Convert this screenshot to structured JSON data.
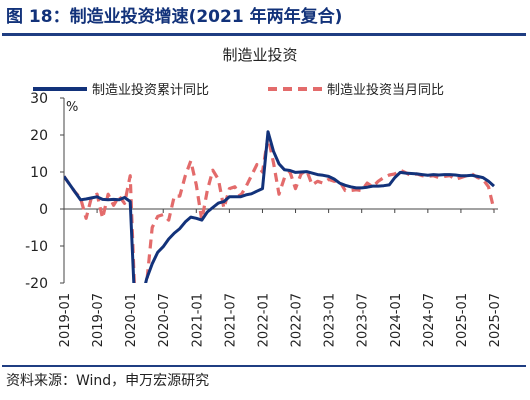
{
  "figure": {
    "title": "图 18：制造业投资增速(2021 年两年复合)",
    "source": "资料来源：Wind，申万宏源研究"
  },
  "colors": {
    "title": "#12327a",
    "rule": "#1f3d82",
    "cumulative": "#12327a",
    "monthly": "#e36b6b"
  },
  "chart_data": {
    "type": "line",
    "title": "制造业投资",
    "ylabel": "%",
    "ylim": [
      -20,
      30
    ],
    "yticks": [
      -20,
      -10,
      0,
      10,
      20,
      30
    ],
    "xlim": [
      "2019-01",
      "2025-07"
    ],
    "xticks": [
      "2019-01",
      "2019-07",
      "2020-01",
      "2020-07",
      "2021-01",
      "2021-07",
      "2022-01",
      "2022-07",
      "2023-01",
      "2023-07",
      "2024-01",
      "2024-07",
      "2025-01",
      "2025-07"
    ],
    "legend_position": "top",
    "grid": false,
    "series": [
      {
        "name": "制造业投资累计同比",
        "style": "solid",
        "points": [
          [
            "2019-01",
            8.8
          ],
          [
            "2019-03",
            4.6
          ],
          [
            "2019-04",
            2.5
          ],
          [
            "2019-05",
            2.7
          ],
          [
            "2019-06",
            3.0
          ],
          [
            "2019-07",
            3.3
          ],
          [
            "2019-08",
            2.6
          ],
          [
            "2019-09",
            2.5
          ],
          [
            "2019-10",
            2.6
          ],
          [
            "2019-11",
            2.5
          ],
          [
            "2019-12",
            3.1
          ],
          [
            "2020-01",
            2.0
          ],
          [
            "2020-02",
            -31.5
          ],
          [
            "2020-03",
            -25.2
          ],
          [
            "2020-04",
            -18.8
          ],
          [
            "2020-05",
            -14.8
          ],
          [
            "2020-06",
            -11.7
          ],
          [
            "2020-07",
            -10.2
          ],
          [
            "2020-08",
            -8.1
          ],
          [
            "2020-09",
            -6.5
          ],
          [
            "2020-10",
            -5.3
          ],
          [
            "2020-11",
            -3.5
          ],
          [
            "2020-12",
            -2.2
          ],
          [
            "2021-01",
            -2.5
          ],
          [
            "2021-02",
            -3.0
          ],
          [
            "2021-03",
            -0.8
          ],
          [
            "2021-04",
            0.4
          ],
          [
            "2021-05",
            1.6
          ],
          [
            "2021-06",
            2.0
          ],
          [
            "2021-07",
            3.3
          ],
          [
            "2021-08",
            3.3
          ],
          [
            "2021-09",
            3.3
          ],
          [
            "2021-10",
            3.8
          ],
          [
            "2021-11",
            4.1
          ],
          [
            "2021-12",
            4.8
          ],
          [
            "2022-01",
            5.5
          ],
          [
            "2022-02",
            20.9
          ],
          [
            "2022-03",
            15.6
          ],
          [
            "2022-04",
            12.2
          ],
          [
            "2022-05",
            10.6
          ],
          [
            "2022-06",
            10.4
          ],
          [
            "2022-07",
            9.9
          ],
          [
            "2022-08",
            10.0
          ],
          [
            "2022-09",
            10.1
          ],
          [
            "2022-10",
            9.7
          ],
          [
            "2022-11",
            9.3
          ],
          [
            "2022-12",
            9.1
          ],
          [
            "2023-01",
            8.8
          ],
          [
            "2023-02",
            8.1
          ],
          [
            "2023-03",
            7.0
          ],
          [
            "2023-04",
            6.4
          ],
          [
            "2023-05",
            6.0
          ],
          [
            "2023-06",
            5.7
          ],
          [
            "2023-07",
            5.7
          ],
          [
            "2023-08",
            5.9
          ],
          [
            "2023-09",
            6.2
          ],
          [
            "2023-10",
            6.2
          ],
          [
            "2023-11",
            6.3
          ],
          [
            "2023-12",
            6.5
          ],
          [
            "2024-01",
            8.5
          ],
          [
            "2024-02",
            9.9
          ],
          [
            "2024-03",
            9.7
          ],
          [
            "2024-04",
            9.6
          ],
          [
            "2024-05",
            9.5
          ],
          [
            "2024-06",
            9.3
          ],
          [
            "2024-07",
            9.1
          ],
          [
            "2024-08",
            9.3
          ],
          [
            "2024-09",
            9.2
          ],
          [
            "2024-10",
            9.3
          ],
          [
            "2024-11",
            9.3
          ],
          [
            "2024-12",
            9.2
          ],
          [
            "2025-01",
            9.0
          ],
          [
            "2025-02",
            9.0
          ],
          [
            "2025-03",
            9.1
          ],
          [
            "2025-04",
            8.8
          ],
          [
            "2025-05",
            8.5
          ],
          [
            "2025-06",
            7.5
          ],
          [
            "2025-07",
            6.2
          ]
        ]
      },
      {
        "name": "制造业投资当月同比",
        "style": "dashed",
        "points": [
          [
            "2019-01",
            8.8
          ],
          [
            "2019-03",
            4.6
          ],
          [
            "2019-04",
            3.0
          ],
          [
            "2019-05",
            -2.5
          ],
          [
            "2019-06",
            3.3
          ],
          [
            "2019-07",
            4.0
          ],
          [
            "2019-08",
            -2.5
          ],
          [
            "2019-09",
            4.0
          ],
          [
            "2019-10",
            1.0
          ],
          [
            "2019-11",
            3.5
          ],
          [
            "2019-12",
            1.5
          ],
          [
            "2020-01",
            9.0
          ],
          [
            "2020-02",
            -30.0
          ],
          [
            "2020-03",
            -22.0
          ],
          [
            "2020-04",
            -20.0
          ],
          [
            "2020-05",
            -5.0
          ],
          [
            "2020-06",
            -2.0
          ],
          [
            "2020-07",
            -1.5
          ],
          [
            "2020-08",
            -3.0
          ],
          [
            "2020-09",
            3.5
          ],
          [
            "2020-10",
            3.5
          ],
          [
            "2020-11",
            9.0
          ],
          [
            "2020-12",
            13.0
          ],
          [
            "2021-01",
            6.5
          ],
          [
            "2021-02",
            -3.0
          ],
          [
            "2021-03",
            5.0
          ],
          [
            "2021-04",
            10.5
          ],
          [
            "2021-05",
            8.0
          ],
          [
            "2021-06",
            0.2
          ],
          [
            "2021-07",
            5.5
          ],
          [
            "2021-08",
            6.0
          ],
          [
            "2021-09",
            3.5
          ],
          [
            "2021-10",
            6.0
          ],
          [
            "2021-11",
            9.0
          ],
          [
            "2021-12",
            12.0
          ],
          [
            "2022-01",
            10.0
          ],
          [
            "2022-02",
            19.5
          ],
          [
            "2022-03",
            12.5
          ],
          [
            "2022-04",
            4.0
          ],
          [
            "2022-05",
            8.5
          ],
          [
            "2022-06",
            10.0
          ],
          [
            "2022-07",
            5.5
          ],
          [
            "2022-08",
            9.5
          ],
          [
            "2022-09",
            10.5
          ],
          [
            "2022-10",
            6.5
          ],
          [
            "2022-11",
            7.5
          ],
          [
            "2022-12",
            7.0
          ],
          [
            "2023-01",
            8.0
          ],
          [
            "2023-02",
            7.5
          ],
          [
            "2023-03",
            7.5
          ],
          [
            "2023-04",
            5.0
          ],
          [
            "2023-05",
            5.0
          ],
          [
            "2023-06",
            5.2
          ],
          [
            "2023-07",
            5.0
          ],
          [
            "2023-08",
            7.0
          ],
          [
            "2023-09",
            6.0
          ],
          [
            "2023-10",
            7.5
          ],
          [
            "2023-11",
            8.5
          ],
          [
            "2023-12",
            9.2
          ],
          [
            "2024-01",
            9.5
          ],
          [
            "2024-02",
            10.5
          ],
          [
            "2024-03",
            9.8
          ],
          [
            "2024-04",
            9.0
          ],
          [
            "2024-05",
            9.5
          ],
          [
            "2024-06",
            9.0
          ],
          [
            "2024-07",
            8.8
          ],
          [
            "2024-08",
            9.0
          ],
          [
            "2024-09",
            8.5
          ],
          [
            "2024-10",
            8.8
          ],
          [
            "2024-11",
            9.0
          ],
          [
            "2024-12",
            8.0
          ],
          [
            "2025-01",
            8.5
          ],
          [
            "2025-02",
            9.0
          ],
          [
            "2025-03",
            9.5
          ],
          [
            "2025-04",
            8.5
          ],
          [
            "2025-05",
            8.0
          ],
          [
            "2025-06",
            6.0
          ],
          [
            "2025-07",
            -0.2
          ]
        ]
      }
    ]
  }
}
